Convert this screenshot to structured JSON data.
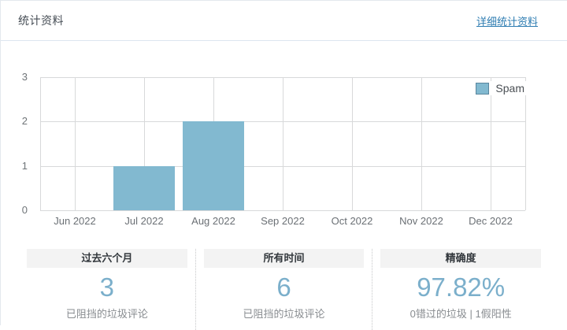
{
  "panel": {
    "title": "统计资料",
    "details_link_label": "详细统计资料"
  },
  "chart_data": {
    "type": "bar",
    "title": "",
    "xlabel": "",
    "ylabel": "",
    "categories": [
      "Jun 2022",
      "Jul 2022",
      "Aug 2022",
      "Sep 2022",
      "Oct 2022",
      "Nov 2022",
      "Dec 2022"
    ],
    "series": [
      {
        "name": "Spam",
        "color": "#82b9d0",
        "values": [
          0,
          1,
          2,
          0,
          0,
          0,
          0
        ]
      }
    ],
    "ylim": [
      0,
      3
    ],
    "yticks": [
      0,
      1,
      2,
      3
    ],
    "grid": true,
    "legend_position": "top-right"
  },
  "stats": {
    "boxes": [
      {
        "label": "过去六个月",
        "value": "3",
        "caption": "已阻挡的垃圾评论"
      },
      {
        "label": "所有时间",
        "value": "6",
        "caption": "已阻挡的垃圾评论"
      },
      {
        "label": "精确度",
        "value": "97.82%",
        "caption": "0错过的垃圾 | 1假阳性"
      }
    ]
  },
  "colors": {
    "accent_link_blue": "#2d7cb1",
    "bar_fill": "#82b9d0",
    "stat_value_blue": "#7bafcb",
    "grid_line": "#d8d9da",
    "header_border": "#dde6f0"
  }
}
